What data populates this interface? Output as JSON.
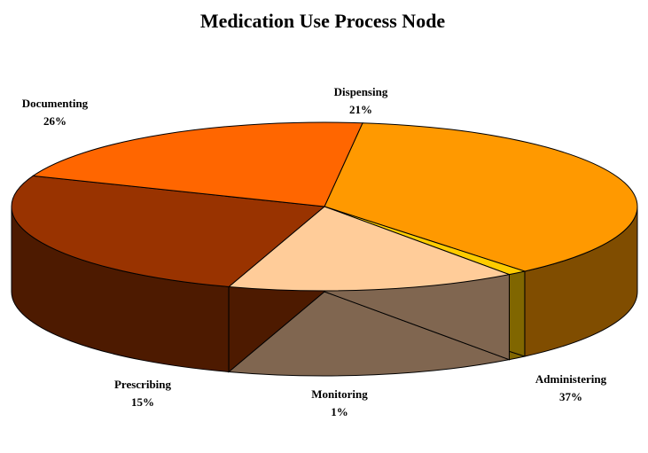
{
  "chart_data": {
    "type": "pie",
    "title": "Medication Use Process Node",
    "three_d": true,
    "legend": "none",
    "slices": [
      {
        "label": "Administering",
        "value": 37,
        "percent_label": "37%",
        "color": "#FF9900",
        "side_color": "#804D00"
      },
      {
        "label": "Monitoring",
        "value": 1,
        "percent_label": "1%",
        "color": "#FFCC00",
        "side_color": "#806600"
      },
      {
        "label": "Prescribing",
        "value": 15,
        "percent_label": "15%",
        "color": "#FFCC99",
        "side_color": "#806650"
      },
      {
        "label": "Documenting",
        "value": 26,
        "percent_label": "26%",
        "color": "#993300",
        "side_color": "#4D1A00"
      },
      {
        "label": "Dispensing",
        "value": 21,
        "percent_label": "21%",
        "color": "#FF6600",
        "side_color": "#803300"
      }
    ]
  }
}
